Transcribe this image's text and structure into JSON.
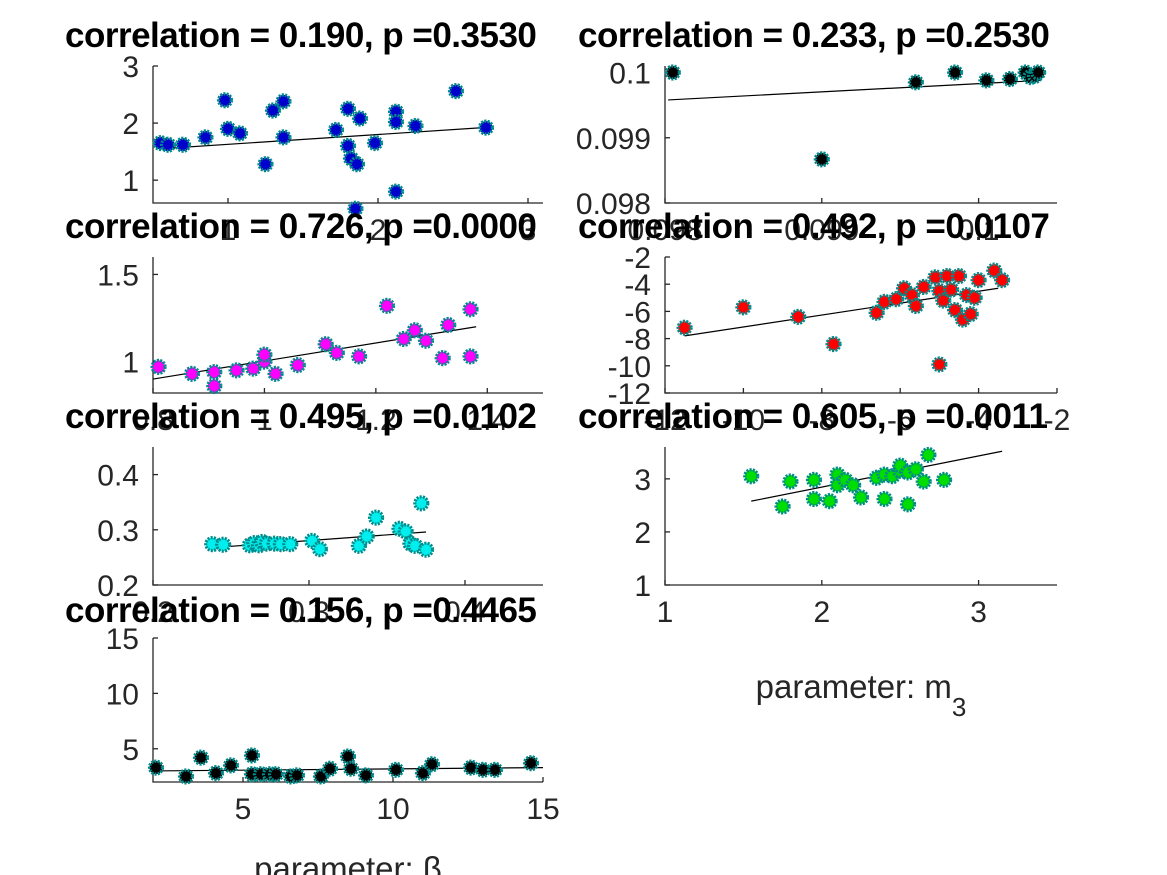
{
  "chart_data": [
    {
      "type": "scatter",
      "title": "correlation = 0.190, p =0.3530",
      "xlim": [
        0.5,
        3.1
      ],
      "ylim": [
        0.6,
        3.0
      ],
      "xticks": [
        "1",
        "2",
        "3"
      ],
      "xtick_values": [
        1,
        2,
        3
      ],
      "yticks": [
        "1",
        "2",
        "3"
      ],
      "ytick_values": [
        1,
        2,
        3
      ],
      "marker_fill": "#0000cc",
      "marker_edge": "#008b8b",
      "fit_line": {
        "x": [
          0.55,
          2.7
        ],
        "y": [
          1.55,
          1.92
        ]
      },
      "points": [
        [
          0.55,
          1.65
        ],
        [
          0.6,
          1.62
        ],
        [
          0.7,
          1.62
        ],
        [
          0.85,
          1.75
        ],
        [
          0.98,
          2.4
        ],
        [
          1.0,
          1.9
        ],
        [
          1.08,
          1.82
        ],
        [
          1.25,
          1.28
        ],
        [
          1.3,
          2.22
        ],
        [
          1.37,
          2.38
        ],
        [
          1.37,
          1.75
        ],
        [
          1.72,
          1.88
        ],
        [
          1.8,
          2.25
        ],
        [
          1.8,
          1.6
        ],
        [
          1.82,
          1.38
        ],
        [
          1.86,
          1.28
        ],
        [
          1.88,
          2.08
        ],
        [
          1.85,
          0.5
        ],
        [
          1.98,
          1.65
        ],
        [
          2.12,
          2.2
        ],
        [
          2.12,
          2.02
        ],
        [
          2.12,
          0.8
        ],
        [
          2.25,
          1.95
        ],
        [
          2.52,
          2.56
        ],
        [
          2.72,
          1.92
        ]
      ]
    },
    {
      "type": "scatter",
      "title": "correlation = 0.233, p =0.2530",
      "xlim": [
        0.098,
        0.1005
      ],
      "ylim": [
        0.098,
        0.1001
      ],
      "xticks": [
        "0.098",
        "0.099",
        "0.1"
      ],
      "xtick_values": [
        0.098,
        0.099,
        0.1
      ],
      "yticks": [
        "0.098",
        "0.099",
        "0.1"
      ],
      "ytick_values": [
        0.098,
        0.099,
        0.1
      ],
      "marker_fill": "#000000",
      "marker_edge": "#008b8b",
      "fit_line": {
        "x": [
          0.09802,
          0.1004
        ],
        "y": [
          0.09958,
          0.09988
        ]
      },
      "points": [
        [
          0.09805,
          0.1
        ],
        [
          0.099,
          0.09867
        ],
        [
          0.0996,
          0.09985
        ],
        [
          0.09985,
          0.1
        ],
        [
          0.10005,
          0.09988
        ],
        [
          0.1002,
          0.0999
        ],
        [
          0.1003,
          0.1
        ],
        [
          0.10033,
          0.09993
        ],
        [
          0.10036,
          0.09995
        ],
        [
          0.10038,
          0.1
        ]
      ]
    },
    {
      "type": "scatter",
      "title": "correlation = 0.726, p =0.0000",
      "xlim": [
        0.8,
        1.5
      ],
      "ylim": [
        0.82,
        1.6
      ],
      "xticks": [
        "0.8",
        "1",
        "1.2",
        "1.4"
      ],
      "xtick_values": [
        0.8,
        1.0,
        1.2,
        1.4
      ],
      "yticks": [
        "1",
        "1.5"
      ],
      "ytick_values": [
        1.0,
        1.5
      ],
      "marker_fill": "#ff00ff",
      "marker_edge": "#008b8b",
      "fit_line": {
        "x": [
          0.8,
          1.38
        ],
        "y": [
          0.9,
          1.2
        ]
      },
      "points": [
        [
          0.81,
          0.97
        ],
        [
          0.87,
          0.93
        ],
        [
          0.91,
          0.94
        ],
        [
          0.91,
          0.86
        ],
        [
          0.95,
          0.95
        ],
        [
          0.98,
          0.96
        ],
        [
          1.0,
          1.0
        ],
        [
          1.0,
          1.04
        ],
        [
          1.02,
          0.93
        ],
        [
          1.06,
          0.98
        ],
        [
          1.11,
          1.1
        ],
        [
          1.13,
          1.05
        ],
        [
          1.17,
          1.03
        ],
        [
          1.22,
          1.32
        ],
        [
          1.25,
          1.13
        ],
        [
          1.27,
          1.18
        ],
        [
          1.29,
          1.12
        ],
        [
          1.32,
          1.02
        ],
        [
          1.33,
          1.21
        ],
        [
          1.37,
          1.03
        ],
        [
          1.37,
          1.3
        ]
      ]
    },
    {
      "type": "scatter",
      "title": "correlation = 0.492, p =0.0107",
      "xlim": [
        -12,
        -2
      ],
      "ylim": [
        -12,
        -2
      ],
      "xticks": [
        "-12",
        "-10",
        "-8",
        "-6",
        "-4",
        "-2"
      ],
      "xtick_values": [
        -12,
        -10,
        -8,
        -6,
        -4,
        -2
      ],
      "yticks": [
        "-12",
        "-10",
        "-8",
        "-6",
        "-4",
        "-2"
      ],
      "ytick_values": [
        -12,
        -10,
        -8,
        -6,
        -4,
        -2
      ],
      "marker_fill": "#ff0000",
      "marker_edge": "#008b8b",
      "fit_line": {
        "x": [
          -11.5,
          -3.5
        ],
        "y": [
          -7.8,
          -4.3
        ]
      },
      "points": [
        [
          -11.5,
          -7.2
        ],
        [
          -10.0,
          -5.7
        ],
        [
          -8.6,
          -6.4
        ],
        [
          -7.7,
          -8.4
        ],
        [
          -6.6,
          -6.1
        ],
        [
          -6.4,
          -5.3
        ],
        [
          -6.1,
          -5.1
        ],
        [
          -5.9,
          -4.3
        ],
        [
          -5.7,
          -4.8
        ],
        [
          -5.6,
          -5.6
        ],
        [
          -5.4,
          -4.2
        ],
        [
          -5.1,
          -3.5
        ],
        [
          -5.0,
          -4.5
        ],
        [
          -5.0,
          -9.9
        ],
        [
          -4.9,
          -5.2
        ],
        [
          -4.8,
          -3.4
        ],
        [
          -4.7,
          -4.4
        ],
        [
          -4.6,
          -5.9
        ],
        [
          -4.5,
          -3.4
        ],
        [
          -4.4,
          -6.6
        ],
        [
          -4.3,
          -4.8
        ],
        [
          -4.2,
          -6.2
        ],
        [
          -4.1,
          -5.0
        ],
        [
          -4.0,
          -3.7
        ],
        [
          -3.6,
          -3.0
        ],
        [
          -3.4,
          -3.7
        ]
      ]
    },
    {
      "type": "scatter",
      "title": "correlation = 0.495, p =0.0102",
      "xlim": [
        0.2,
        0.45
      ],
      "ylim": [
        0.2,
        0.45
      ],
      "xticks": [
        "0.2",
        "0.3",
        "0.4"
      ],
      "xtick_values": [
        0.2,
        0.3,
        0.4
      ],
      "yticks": [
        "0.2",
        "0.3",
        "0.4"
      ],
      "ytick_values": [
        0.2,
        0.3,
        0.4
      ],
      "marker_fill": "#00eeee",
      "marker_edge": "#008b8b",
      "fit_line": {
        "x": [
          0.235,
          0.375
        ],
        "y": [
          0.267,
          0.296
        ]
      },
      "points": [
        [
          0.238,
          0.274
        ],
        [
          0.245,
          0.273
        ],
        [
          0.262,
          0.272
        ],
        [
          0.265,
          0.276
        ],
        [
          0.268,
          0.272
        ],
        [
          0.27,
          0.278
        ],
        [
          0.273,
          0.275
        ],
        [
          0.278,
          0.275
        ],
        [
          0.282,
          0.274
        ],
        [
          0.288,
          0.274
        ],
        [
          0.302,
          0.28
        ],
        [
          0.307,
          0.265
        ],
        [
          0.332,
          0.271
        ],
        [
          0.337,
          0.288
        ],
        [
          0.343,
          0.322
        ],
        [
          0.358,
          0.302
        ],
        [
          0.362,
          0.297
        ],
        [
          0.365,
          0.275
        ],
        [
          0.368,
          0.271
        ],
        [
          0.372,
          0.348
        ],
        [
          0.375,
          0.264
        ]
      ]
    },
    {
      "type": "scatter",
      "title": "correlation = 0.605, p =0.0011",
      "xlim": [
        1,
        3.5
      ],
      "ylim": [
        1,
        3.6
      ],
      "xticks": [
        "1",
        "2",
        "3"
      ],
      "xtick_values": [
        1,
        2,
        3
      ],
      "yticks": [
        "1",
        "2",
        "3"
      ],
      "ytick_values": [
        1,
        2,
        3
      ],
      "xlabel": "parameter: m",
      "xlabel_subscript": "3",
      "marker_fill": "#00dd00",
      "marker_edge": "#008b8b",
      "fit_line": {
        "x": [
          1.55,
          3.15
        ],
        "y": [
          2.58,
          3.52
        ]
      },
      "points": [
        [
          1.55,
          3.05
        ],
        [
          1.75,
          2.48
        ],
        [
          1.8,
          2.95
        ],
        [
          1.95,
          2.62
        ],
        [
          1.95,
          2.98
        ],
        [
          2.05,
          2.58
        ],
        [
          2.1,
          3.08
        ],
        [
          2.1,
          2.88
        ],
        [
          2.15,
          2.98
        ],
        [
          2.2,
          2.88
        ],
        [
          2.25,
          2.65
        ],
        [
          2.35,
          3.02
        ],
        [
          2.4,
          3.08
        ],
        [
          2.4,
          2.62
        ],
        [
          2.45,
          3.05
        ],
        [
          2.5,
          3.15
        ],
        [
          2.5,
          3.25
        ],
        [
          2.55,
          3.12
        ],
        [
          2.55,
          2.52
        ],
        [
          2.6,
          3.18
        ],
        [
          2.65,
          2.95
        ],
        [
          2.68,
          3.45
        ],
        [
          2.78,
          2.98
        ]
      ]
    },
    {
      "type": "scatter",
      "title": "correlation = 0.156, p =0.4465",
      "xlim": [
        2,
        15
      ],
      "ylim": [
        2,
        15
      ],
      "xticks": [
        "5",
        "10",
        "15"
      ],
      "xtick_values": [
        5,
        10,
        15
      ],
      "yticks": [
        "5",
        "10",
        "15"
      ],
      "ytick_values": [
        5,
        10,
        15
      ],
      "xlabel": "parameter: β",
      "marker_fill": "#000000",
      "marker_edge": "#008b8b",
      "fit_line": {
        "x": [
          2.0,
          15.0
        ],
        "y": [
          3.0,
          3.3
        ]
      },
      "points": [
        [
          2.1,
          3.3
        ],
        [
          3.1,
          2.5
        ],
        [
          3.6,
          4.2
        ],
        [
          4.1,
          2.8
        ],
        [
          4.6,
          3.5
        ],
        [
          5.3,
          2.7
        ],
        [
          5.3,
          4.4
        ],
        [
          5.6,
          2.7
        ],
        [
          5.9,
          2.7
        ],
        [
          6.1,
          2.7
        ],
        [
          6.6,
          2.5
        ],
        [
          6.8,
          2.6
        ],
        [
          7.6,
          2.5
        ],
        [
          7.9,
          3.2
        ],
        [
          8.5,
          4.3
        ],
        [
          8.6,
          3.2
        ],
        [
          9.1,
          2.6
        ],
        [
          10.1,
          3.1
        ],
        [
          11.0,
          2.8
        ],
        [
          11.3,
          3.6
        ],
        [
          12.6,
          3.3
        ],
        [
          13.0,
          3.1
        ],
        [
          13.4,
          3.1
        ],
        [
          14.6,
          3.7
        ]
      ]
    }
  ]
}
